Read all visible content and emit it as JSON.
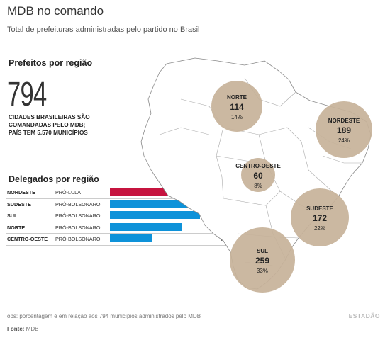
{
  "title": "MDB no comando",
  "subtitle": "Total de prefeituras administradas pelo partido no Brasil",
  "mayors": {
    "heading": "Prefeitos por região",
    "big_number": "794",
    "big_text": "CIDADES BRASILEIRAS SÃO COMANDADAS PELO MDB; PAÍS TEM 5.570 MUNICÍPIOS"
  },
  "delegates": {
    "heading": "Delegados por região",
    "max": 107,
    "colors": {
      "PRÓ-LULA": "#c6143f",
      "PRÓ-BOLSONARO": "#0e92d9"
    },
    "rows": [
      {
        "region": "NORDESTE",
        "position": "PRÓ-LULA",
        "value": 107
      },
      {
        "region": "SUDESTE",
        "position": "PRÓ-BOLSONARO",
        "value": 107
      },
      {
        "region": "SUL",
        "position": "PRÓ-BOLSONARO",
        "value": 94
      },
      {
        "region": "NORTE",
        "position": "PRÓ-BOLSONARO",
        "value": 75
      },
      {
        "region": "CENTRO-OESTE",
        "position": "PRÓ-BOLSONARO",
        "value": 44
      }
    ]
  },
  "map": {
    "bubble_color": "#c7b299",
    "regions": [
      {
        "name": "NORTE",
        "value": "114",
        "pct": "14%"
      },
      {
        "name": "NORDESTE",
        "value": "189",
        "pct": "24%"
      },
      {
        "name": "CENTRO-OESTE",
        "value": "60",
        "pct": "8%"
      },
      {
        "name": "SUDESTE",
        "value": "172",
        "pct": "22%"
      },
      {
        "name": "SUL",
        "value": "259",
        "pct": "33%"
      }
    ]
  },
  "footer": {
    "note": "obs: porcentagem é em relação aos 794 municípios administrados pelo MDB",
    "source_label": "Fonte:",
    "source": "MDB",
    "logo": "ESTADÃO"
  }
}
